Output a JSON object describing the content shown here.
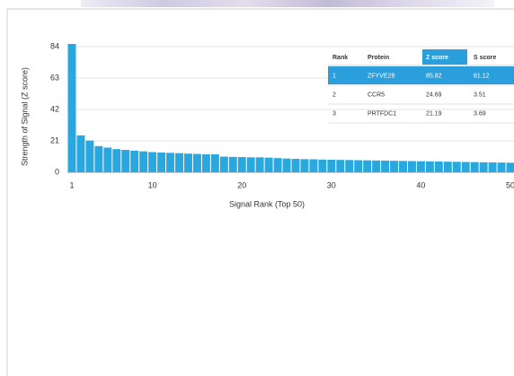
{
  "chart_data": {
    "type": "bar",
    "y_label": "Strength of Signal (Z score)",
    "x_label": "Signal Rank (Top 50)",
    "x": [
      1,
      2,
      3,
      4,
      5,
      6,
      7,
      8,
      9,
      10,
      11,
      12,
      13,
      14,
      15,
      16,
      17,
      18,
      19,
      20,
      21,
      22,
      23,
      24,
      25,
      26,
      27,
      28,
      29,
      30,
      31,
      32,
      33,
      34,
      35,
      36,
      37,
      38,
      39,
      40,
      41,
      42,
      43,
      44,
      45,
      46,
      47,
      48,
      49,
      50
    ],
    "values": [
      85.82,
      24.69,
      21.19,
      17.5,
      16.5,
      15.5,
      15,
      14.5,
      14,
      13.5,
      13.2,
      13,
      12.8,
      12.5,
      12.3,
      12,
      12,
      10.5,
      10.3,
      10.2,
      10,
      10,
      9.8,
      9.5,
      9.2,
      9,
      8.8,
      8.7,
      8.5,
      8.4,
      8.3,
      8.2,
      8.1,
      8,
      7.9,
      7.8,
      7.7,
      7.6,
      7.5,
      7.4,
      7.3,
      7.2,
      7.1,
      7,
      6.9,
      6.8,
      6.7,
      6.6,
      6.5,
      6.4
    ],
    "color": "#29a8e0",
    "xlim": [
      0.5,
      50.5
    ],
    "xticks": [
      1,
      10,
      20,
      30,
      40,
      50
    ],
    "ylim": [
      0,
      84
    ],
    "yticks": [
      0,
      21,
      42,
      63,
      84
    ],
    "grid": true,
    "table": {
      "columns": [
        "Rank",
        "Protein",
        "Z score",
        "S score"
      ],
      "rows": [
        [
          1,
          "ZFYVE28",
          85.82,
          61.12
        ],
        [
          2,
          "CCR5",
          24.69,
          3.51
        ],
        [
          3,
          "PRTFDC1",
          21.19,
          3.69
        ]
      ],
      "highlight_color": "#2a9fdc"
    }
  }
}
